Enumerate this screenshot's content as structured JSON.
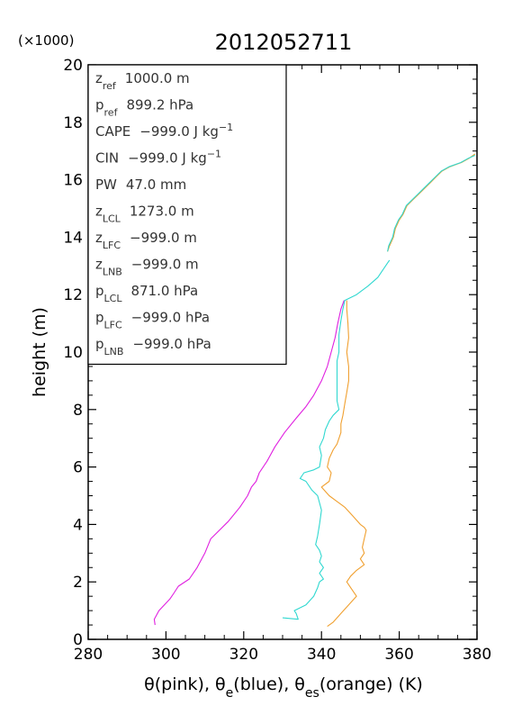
{
  "chart_data": {
    "type": "line",
    "title": "2012052711",
    "xlabel": "θ(pink), θe(blue), θes(orange)   (K)",
    "ylabel": "height (m)",
    "y_multiplier_label": "(×1000)",
    "xlim": [
      280,
      380
    ],
    "ylim": [
      0,
      20
    ],
    "x_ticks": [
      "280",
      "300",
      "320",
      "340",
      "360",
      "380"
    ],
    "y_ticks": [
      "0",
      "2",
      "4",
      "6",
      "8",
      "10",
      "12",
      "14",
      "16",
      "18",
      "20"
    ],
    "grid": false,
    "info_box": [
      {
        "sym": "z",
        "sub": "ref",
        "value": "1000.0 m"
      },
      {
        "sym": "p",
        "sub": "ref",
        "value": "899.2 hPa"
      },
      {
        "sym": "CAPE",
        "sub": "",
        "value": "−999.0 J kg",
        "sup": "−1"
      },
      {
        "sym": "CIN",
        "sub": "",
        "value": "−999.0 J kg",
        "sup": "−1"
      },
      {
        "sym": "PW",
        "sub": "",
        "value": "47.0 mm"
      },
      {
        "sym": "z",
        "sub": "LCL",
        "value": "1273.0 m"
      },
      {
        "sym": "z",
        "sub": "LFC",
        "value": "−999.0 m"
      },
      {
        "sym": "z",
        "sub": "LNB",
        "value": "−999.0 m"
      },
      {
        "sym": "p",
        "sub": "LCL",
        "value": "871.0 hPa"
      },
      {
        "sym": "p",
        "sub": "LFC",
        "value": "−999.0 hPa"
      },
      {
        "sym": "p",
        "sub": "LNB",
        "value": "−999.0 hPa"
      }
    ],
    "series": [
      {
        "color": "#e020e0",
        "points": [
          [
            297.2,
            0.5
          ],
          [
            297.0,
            0.7
          ],
          [
            298.2,
            1.0
          ],
          [
            301.0,
            1.4
          ],
          [
            302.0,
            1.6
          ],
          [
            303.2,
            1.85
          ],
          [
            306.0,
            2.1
          ],
          [
            308.0,
            2.5
          ],
          [
            310.0,
            3.0
          ],
          [
            311.5,
            3.5
          ],
          [
            313.0,
            3.7
          ],
          [
            316.0,
            4.1
          ],
          [
            319.0,
            4.6
          ],
          [
            321.0,
            5.0
          ],
          [
            322.0,
            5.3
          ],
          [
            323.2,
            5.5
          ],
          [
            324.0,
            5.8
          ],
          [
            326.0,
            6.2
          ],
          [
            328.0,
            6.7
          ],
          [
            330.5,
            7.2
          ],
          [
            333.5,
            7.7
          ],
          [
            336.0,
            8.1
          ],
          [
            338.0,
            8.5
          ],
          [
            340.0,
            9.0
          ],
          [
            341.5,
            9.5
          ],
          [
            342.5,
            10.0
          ],
          [
            343.5,
            10.5
          ],
          [
            344.2,
            11.0
          ],
          [
            345.0,
            11.5
          ],
          [
            345.8,
            11.8
          ]
        ]
      },
      {
        "color": "#30d8d0",
        "points": [
          [
            330.0,
            0.75
          ],
          [
            334.0,
            0.7
          ],
          [
            333.5,
            0.9
          ],
          [
            333.0,
            1.0
          ],
          [
            336.0,
            1.2
          ],
          [
            338.0,
            1.5
          ],
          [
            339.0,
            1.8
          ],
          [
            339.5,
            2.0
          ],
          [
            340.5,
            2.1
          ],
          [
            339.5,
            2.3
          ],
          [
            340.5,
            2.5
          ],
          [
            339.5,
            2.7
          ],
          [
            340.0,
            2.9
          ],
          [
            339.5,
            3.1
          ],
          [
            338.5,
            3.3
          ],
          [
            339.0,
            3.6
          ],
          [
            339.5,
            4.0
          ],
          [
            340.0,
            4.5
          ],
          [
            339.0,
            5.0
          ],
          [
            337.5,
            5.2
          ],
          [
            336.0,
            5.5
          ],
          [
            334.5,
            5.6
          ],
          [
            335.5,
            5.8
          ],
          [
            338.0,
            5.9
          ],
          [
            339.5,
            6.0
          ],
          [
            340.0,
            6.4
          ],
          [
            339.5,
            6.7
          ],
          [
            340.5,
            7.0
          ],
          [
            341.0,
            7.3
          ],
          [
            342.0,
            7.6
          ],
          [
            343.0,
            7.8
          ],
          [
            344.5,
            8.0
          ],
          [
            344.0,
            8.3
          ],
          [
            344.0,
            8.8
          ],
          [
            344.0,
            9.2
          ],
          [
            344.0,
            9.7
          ],
          [
            344.5,
            10.0
          ],
          [
            344.5,
            10.6
          ],
          [
            345.0,
            11.1
          ],
          [
            345.5,
            11.5
          ],
          [
            346.0,
            11.8
          ],
          [
            349.0,
            12.0
          ],
          [
            352.0,
            12.3
          ],
          [
            354.5,
            12.6
          ],
          [
            357.0,
            13.1
          ],
          [
            357.5,
            13.2
          ]
        ]
      },
      {
        "color": "#f0a030",
        "points": [
          [
            341.5,
            0.45
          ],
          [
            343.0,
            0.6
          ],
          [
            345.0,
            0.9
          ],
          [
            347.0,
            1.2
          ],
          [
            349.0,
            1.5
          ],
          [
            347.5,
            1.8
          ],
          [
            346.5,
            2.0
          ],
          [
            347.5,
            2.2
          ],
          [
            349.0,
            2.4
          ],
          [
            351.0,
            2.6
          ],
          [
            350.0,
            2.8
          ],
          [
            351.0,
            3.0
          ],
          [
            350.5,
            3.2
          ],
          [
            351.0,
            3.5
          ],
          [
            351.5,
            3.8
          ],
          [
            351.0,
            3.9
          ],
          [
            350.0,
            4.0
          ],
          [
            348.0,
            4.3
          ],
          [
            346.0,
            4.6
          ],
          [
            344.0,
            4.8
          ],
          [
            342.0,
            5.0
          ],
          [
            340.0,
            5.3
          ],
          [
            342.0,
            5.5
          ],
          [
            342.5,
            5.8
          ],
          [
            341.5,
            6.0
          ],
          [
            342.0,
            6.3
          ],
          [
            343.0,
            6.6
          ],
          [
            344.0,
            6.8
          ],
          [
            345.0,
            7.2
          ],
          [
            345.0,
            7.5
          ],
          [
            345.5,
            7.8
          ],
          [
            346.0,
            8.2
          ],
          [
            346.5,
            8.6
          ],
          [
            347.0,
            9.0
          ],
          [
            347.0,
            9.5
          ],
          [
            346.5,
            10.0
          ],
          [
            347.0,
            10.5
          ],
          [
            346.8,
            11.0
          ],
          [
            346.5,
            11.5
          ],
          [
            346.5,
            11.8
          ]
        ]
      },
      {
        "color": "#f0a030",
        "points": [
          [
            357.0,
            13.5
          ],
          [
            357.5,
            13.7
          ],
          [
            358.5,
            14.0
          ],
          [
            359.0,
            14.3
          ],
          [
            360.0,
            14.6
          ],
          [
            361.0,
            14.8
          ],
          [
            362.0,
            15.1
          ],
          [
            363.5,
            15.3
          ],
          [
            365.0,
            15.5
          ],
          [
            366.5,
            15.7
          ],
          [
            368.0,
            15.9
          ],
          [
            369.5,
            16.1
          ],
          [
            371.0,
            16.3
          ],
          [
            373.0,
            16.45
          ],
          [
            376.0,
            16.6
          ],
          [
            378.0,
            16.75
          ],
          [
            379.5,
            16.9
          ]
        ]
      },
      {
        "color": "#30d8d0",
        "points": [
          [
            357.0,
            13.5
          ],
          [
            357.3,
            13.7
          ],
          [
            358.3,
            14.0
          ],
          [
            358.8,
            14.3
          ],
          [
            359.8,
            14.6
          ],
          [
            360.8,
            14.8
          ],
          [
            361.8,
            15.1
          ],
          [
            363.3,
            15.3
          ],
          [
            364.8,
            15.5
          ],
          [
            366.3,
            15.7
          ],
          [
            367.8,
            15.9
          ],
          [
            369.3,
            16.1
          ],
          [
            370.8,
            16.3
          ],
          [
            372.8,
            16.45
          ],
          [
            375.8,
            16.6
          ],
          [
            377.8,
            16.75
          ],
          [
            379.5,
            16.85
          ]
        ]
      }
    ]
  }
}
